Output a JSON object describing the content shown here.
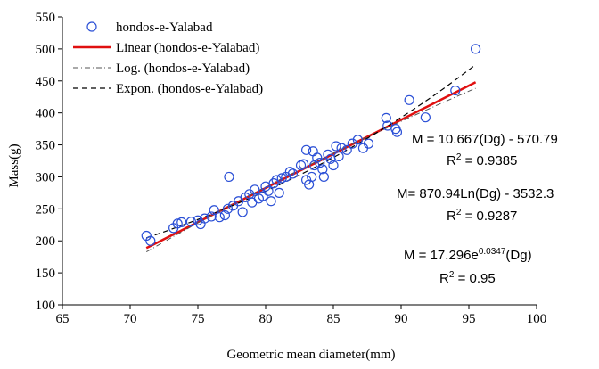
{
  "chart_data": {
    "type": "scatter",
    "xlabel": "Geometric mean diameter(mm)",
    "ylabel": "Mass(g)",
    "xlim": [
      65,
      100
    ],
    "ylim": [
      100,
      550
    ],
    "xticks": [
      65,
      70,
      75,
      80,
      85,
      90,
      95,
      100
    ],
    "yticks": [
      100,
      150,
      200,
      250,
      300,
      350,
      400,
      450,
      500,
      550
    ],
    "grid": false,
    "legend_position": "top-left",
    "colors": {
      "points": "#2a4fd6",
      "linear": "#e01010",
      "log": "#555555",
      "expon": "#000000"
    },
    "series": [
      {
        "name": "hondos-e-Yalabad",
        "kind": "points",
        "points": [
          [
            71.2,
            208
          ],
          [
            71.5,
            200
          ],
          [
            73.2,
            220
          ],
          [
            73.5,
            227
          ],
          [
            73.8,
            229
          ],
          [
            74.5,
            230
          ],
          [
            75.0,
            232
          ],
          [
            75.2,
            226
          ],
          [
            75.5,
            235
          ],
          [
            76.0,
            238
          ],
          [
            76.2,
            248
          ],
          [
            76.6,
            237
          ],
          [
            77.0,
            240
          ],
          [
            77.2,
            250
          ],
          [
            77.3,
            300
          ],
          [
            77.6,
            255
          ],
          [
            78.0,
            262
          ],
          [
            78.3,
            245
          ],
          [
            78.5,
            268
          ],
          [
            78.8,
            273
          ],
          [
            79.0,
            260
          ],
          [
            79.2,
            280
          ],
          [
            79.5,
            266
          ],
          [
            79.8,
            270
          ],
          [
            80.0,
            285
          ],
          [
            80.2,
            278
          ],
          [
            80.4,
            262
          ],
          [
            80.6,
            290
          ],
          [
            80.8,
            295
          ],
          [
            81.0,
            275
          ],
          [
            81.2,
            298
          ],
          [
            81.5,
            300
          ],
          [
            81.8,
            308
          ],
          [
            82.0,
            305
          ],
          [
            82.6,
            318
          ],
          [
            82.8,
            320
          ],
          [
            83.0,
            342
          ],
          [
            83.0,
            295
          ],
          [
            83.2,
            288
          ],
          [
            83.4,
            300
          ],
          [
            83.5,
            340
          ],
          [
            83.6,
            318
          ],
          [
            83.8,
            330
          ],
          [
            84.0,
            322
          ],
          [
            84.2,
            312
          ],
          [
            84.3,
            300
          ],
          [
            84.6,
            335
          ],
          [
            84.8,
            328
          ],
          [
            85.0,
            318
          ],
          [
            85.2,
            348
          ],
          [
            85.4,
            332
          ],
          [
            85.6,
            345
          ],
          [
            86.0,
            342
          ],
          [
            86.4,
            352
          ],
          [
            86.8,
            358
          ],
          [
            87.2,
            345
          ],
          [
            87.6,
            352
          ],
          [
            88.9,
            392
          ],
          [
            89.0,
            380
          ],
          [
            89.6,
            375
          ],
          [
            89.7,
            370
          ],
          [
            90.6,
            420
          ],
          [
            91.8,
            393
          ],
          [
            94.0,
            435
          ],
          [
            95.5,
            500
          ]
        ]
      },
      {
        "name": "Linear (hondos-e-Yalabad)",
        "kind": "trend",
        "model": "linear",
        "x_range": [
          71.2,
          95.5
        ]
      },
      {
        "name": "Log. (hondos-e-Yalabad)",
        "kind": "trend",
        "model": "log",
        "x_range": [
          71.2,
          95.5
        ]
      },
      {
        "name": "Expon. (hondos-e-Yalabad)",
        "kind": "trend",
        "model": "expon",
        "x_range": [
          71.2,
          95.5
        ]
      }
    ],
    "equations": [
      {
        "main": "M = 10.667(Dg) - 570.79",
        "r2_prefix": "R",
        "r2_sup": "2",
        "r2_rest": " = 0.9385"
      },
      {
        "main": "M= 870.94Ln(Dg) - 3532.3",
        "r2_prefix": "R",
        "r2_sup": "2",
        "r2_rest": " = 0.9287"
      },
      {
        "main_prefix": "M = 17.296e",
        "main_sup": "0.0347",
        "main_suffix": "(Dg)",
        "r2_prefix": "R",
        "r2_sup": "2",
        "r2_rest": " = 0.95"
      }
    ]
  }
}
